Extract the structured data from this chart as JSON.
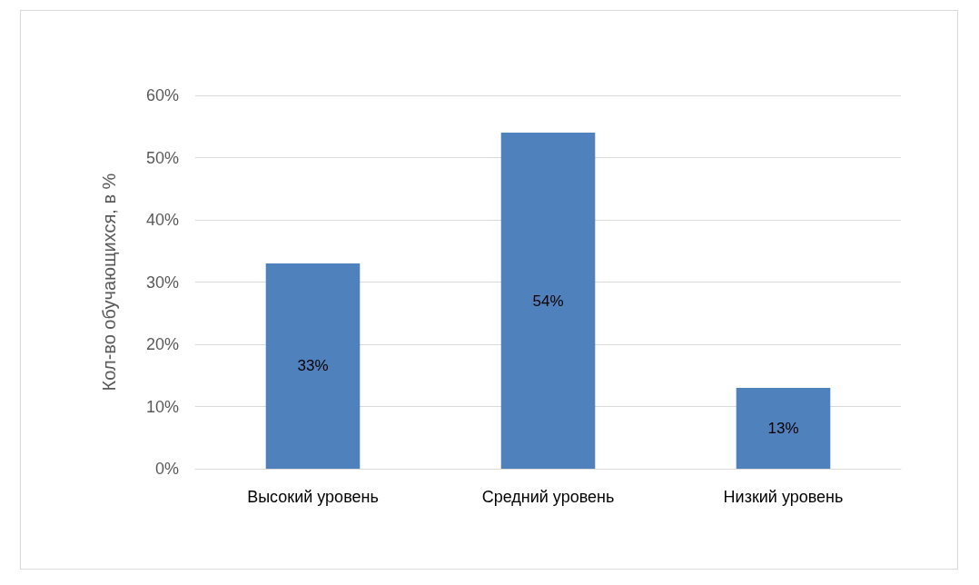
{
  "chart_data": {
    "type": "bar",
    "ylabel": "Кол-во обучающихся, в %",
    "categories": [
      "Высокий уровень",
      "Средний уровень",
      "Низкий уровень"
    ],
    "values": [
      33,
      54,
      13
    ],
    "color": "#4f81bd",
    "value_labels": [
      "33%",
      "54%",
      "13%"
    ],
    "ylim": [
      0,
      60
    ],
    "yticks": [
      {
        "value": 0,
        "label": "0%"
      },
      {
        "value": 10,
        "label": "10%"
      },
      {
        "value": 20,
        "label": "20%"
      },
      {
        "value": 30,
        "label": "30%"
      },
      {
        "value": 40,
        "label": "40%"
      },
      {
        "value": 50,
        "label": "50%"
      },
      {
        "value": 60,
        "label": "60%"
      }
    ],
    "grid": "y"
  }
}
